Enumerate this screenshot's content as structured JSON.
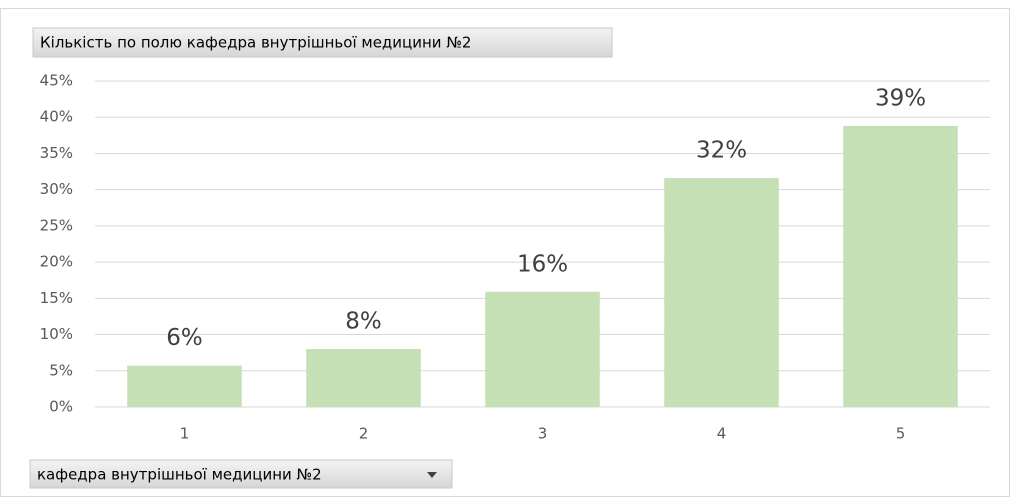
{
  "chart_data": {
    "type": "bar",
    "title": "Кількість по полю кафедра внутрішньої медицини №2",
    "axis_field": "кафедра внутрішньої медицини №2",
    "categories": [
      "1",
      "2",
      "3",
      "4",
      "5"
    ],
    "values": [
      5.7,
      8,
      15.9,
      31.6,
      38.8
    ],
    "value_labels": [
      "6%",
      "8%",
      "16%",
      "32%",
      "39%"
    ],
    "color": "#c5e0b4",
    "ylim": [
      0,
      45
    ],
    "yticks": [
      {
        "value": 0,
        "label": "0%"
      },
      {
        "value": 5,
        "label": "5%"
      },
      {
        "value": 10,
        "label": "10%"
      },
      {
        "value": 15,
        "label": "15%"
      },
      {
        "value": 20,
        "label": "20%"
      },
      {
        "value": 25,
        "label": "25%"
      },
      {
        "value": 30,
        "label": "30%"
      },
      {
        "value": 35,
        "label": "35%"
      },
      {
        "value": 40,
        "label": "40%"
      },
      {
        "value": 45,
        "label": "45%"
      }
    ],
    "grid": true
  }
}
